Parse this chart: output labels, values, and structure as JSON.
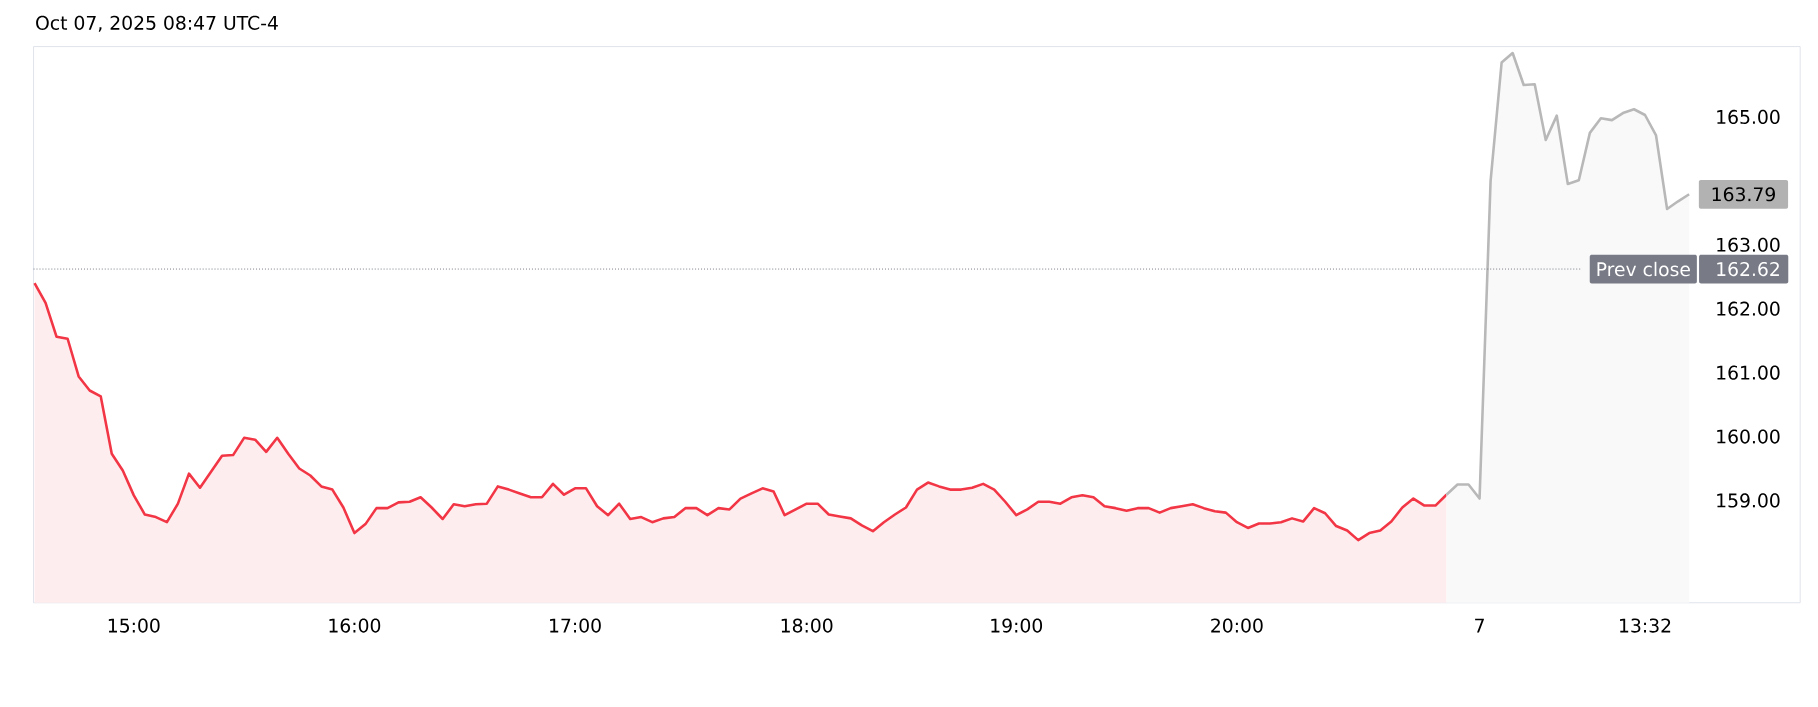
{
  "chart_data": {
    "type": "area",
    "annotations": [
      "Oct 07, 2025 08:47 UTC-4"
    ],
    "categories": [
      null,
      null,
      null,
      null,
      null,
      null,
      null,
      null,
      null,
      "15:00",
      null,
      null,
      null,
      null,
      null,
      null,
      null,
      null,
      null,
      null,
      null,
      null,
      null,
      null,
      null,
      null,
      null,
      null,
      null,
      "16:00",
      null,
      null,
      null,
      null,
      null,
      null,
      null,
      null,
      null,
      null,
      null,
      null,
      null,
      null,
      null,
      null,
      null,
      null,
      null,
      "17:00",
      null,
      null,
      null,
      null,
      null,
      null,
      null,
      null,
      null,
      null,
      null,
      null,
      null,
      null,
      null,
      null,
      null,
      null,
      null,
      null,
      "18:00",
      null,
      null,
      null,
      null,
      null,
      null,
      null,
      null,
      null,
      null,
      null,
      null,
      null,
      null,
      null,
      null,
      null,
      null,
      "19:00",
      null,
      null,
      null,
      null,
      null,
      null,
      null,
      null,
      null,
      null,
      null,
      null,
      null,
      null,
      null,
      null,
      null,
      null,
      null,
      "20:00",
      null,
      null,
      null,
      null,
      null,
      null,
      null,
      null,
      null,
      null,
      null,
      null,
      null,
      null,
      null,
      null,
      null,
      null,
      null,
      null,
      null,
      "7",
      null,
      null,
      null,
      null,
      null,
      null,
      null,
      null,
      null,
      null,
      null,
      null,
      null,
      null,
      "13:32",
      null,
      null,
      null,
      null
    ],
    "series": [
      {
        "color": "#f23645",
        "values": [
          162.4,
          162.09,
          161.56,
          161.53,
          160.94,
          160.72,
          160.63,
          159.73,
          159.47,
          159.08,
          158.78,
          158.74,
          158.66,
          158.95,
          159.42,
          159.2,
          159.45,
          159.7,
          159.71,
          159.98,
          159.95,
          159.76,
          159.98,
          159.73,
          159.5,
          159.39,
          159.22,
          159.17,
          158.89,
          158.49,
          158.63,
          158.88,
          158.88,
          158.97,
          158.98,
          159.05,
          158.89,
          158.71,
          158.94,
          158.91,
          158.94,
          158.95,
          159.22,
          159.17,
          159.11,
          159.05,
          159.05,
          159.26,
          159.09,
          159.19,
          159.19,
          158.91,
          158.77,
          158.95,
          158.71,
          158.74,
          158.66,
          158.72,
          158.74,
          158.88,
          158.88,
          158.77,
          158.88,
          158.86,
          159.03,
          159.11,
          159.19,
          159.14,
          158.77,
          158.86,
          158.95,
          158.95,
          158.78,
          158.75,
          158.72,
          158.61,
          158.52,
          158.66,
          158.78,
          158.89,
          159.17,
          159.28,
          159.22,
          159.17,
          159.17,
          159.2,
          159.26,
          159.17,
          158.98,
          158.77,
          158.86,
          158.98,
          158.98,
          158.95,
          159.05,
          159.08,
          159.05,
          158.91,
          158.88,
          158.84,
          158.88,
          158.88,
          158.81,
          158.88,
          158.91,
          158.94,
          158.88,
          158.83,
          158.81,
          158.66,
          158.57,
          158.64,
          158.64,
          158.66,
          158.72,
          158.67,
          158.88,
          158.8,
          158.6,
          158.53,
          158.38,
          158.49,
          158.53,
          158.67,
          158.89,
          159.03,
          158.92,
          158.92,
          159.09,
          null,
          null,
          null,
          null,
          null,
          null,
          null,
          null,
          null,
          null,
          null,
          null,
          null,
          null,
          null,
          null,
          null,
          null,
          null,
          null,
          null,
          null
        ]
      },
      {
        "color": "#b8b8b8",
        "values": [
          null,
          null,
          null,
          null,
          null,
          null,
          null,
          null,
          null,
          null,
          null,
          null,
          null,
          null,
          null,
          null,
          null,
          null,
          null,
          null,
          null,
          null,
          null,
          null,
          null,
          null,
          null,
          null,
          null,
          null,
          null,
          null,
          null,
          null,
          null,
          null,
          null,
          null,
          null,
          null,
          null,
          null,
          null,
          null,
          null,
          null,
          null,
          null,
          null,
          null,
          null,
          null,
          null,
          null,
          null,
          null,
          null,
          null,
          null,
          null,
          null,
          null,
          null,
          null,
          null,
          null,
          null,
          null,
          null,
          null,
          null,
          null,
          null,
          null,
          null,
          null,
          null,
          null,
          null,
          null,
          null,
          null,
          null,
          null,
          null,
          null,
          null,
          null,
          null,
          null,
          null,
          null,
          null,
          null,
          null,
          null,
          null,
          null,
          null,
          null,
          null,
          null,
          null,
          null,
          null,
          null,
          null,
          null,
          null,
          null,
          null,
          null,
          null,
          null,
          null,
          null,
          null,
          null,
          null,
          null,
          null,
          null,
          null,
          null,
          null,
          null,
          null,
          null,
          159.09,
          159.25,
          159.25,
          159.03,
          164.0,
          165.85,
          166.0,
          165.5,
          165.51,
          164.64,
          165.02,
          163.95,
          164.01,
          164.75,
          164.98,
          164.95,
          165.06,
          165.12,
          165.03,
          164.71,
          163.56,
          163.68,
          163.79
        ],
        "value_labels": [
          null,
          null,
          null,
          null,
          null,
          null,
          null,
          null,
          null,
          null,
          null,
          null,
          null,
          null,
          null,
          null,
          null,
          null,
          null,
          null,
          null,
          null,
          null,
          null,
          null,
          null,
          null,
          null,
          null,
          null,
          null,
          null,
          null,
          null,
          null,
          null,
          null,
          null,
          null,
          null,
          null,
          null,
          null,
          null,
          null,
          null,
          null,
          null,
          null,
          null,
          null,
          null,
          null,
          null,
          null,
          null,
          null,
          null,
          null,
          null,
          null,
          null,
          null,
          null,
          null,
          null,
          null,
          null,
          null,
          null,
          null,
          null,
          null,
          null,
          null,
          null,
          null,
          null,
          null,
          null,
          null,
          null,
          null,
          null,
          null,
          null,
          null,
          null,
          null,
          null,
          null,
          null,
          null,
          null,
          null,
          null,
          null,
          null,
          null,
          null,
          null,
          null,
          null,
          null,
          null,
          null,
          null,
          null,
          null,
          null,
          null,
          null,
          null,
          null,
          null,
          null,
          null,
          null,
          null,
          null,
          null,
          null,
          null,
          null,
          null,
          null,
          null,
          null,
          null,
          null,
          null,
          null,
          null,
          null,
          null,
          null,
          null,
          null,
          null,
          null,
          null,
          null,
          null,
          null,
          null,
          null,
          null,
          null,
          null,
          null,
          "163.79"
        ]
      }
    ],
    "ylim": [
      157.4,
      166.1
    ],
    "yticks": [
      {
        "value": 159,
        "label": "159.00"
      },
      {
        "value": 160,
        "label": "160.00"
      },
      {
        "value": 161,
        "label": "161.00"
      },
      {
        "value": 162,
        "label": "162.00"
      },
      {
        "value": 162.62,
        "label": "162.62"
      },
      {
        "value": 163,
        "label": "163.00"
      },
      {
        "value": 165,
        "label": "165.00"
      }
    ],
    "ref_lines": [
      {
        "axis": "y",
        "value": 162.62,
        "label": "Prev close",
        "color": "#787b86",
        "line_style": "dotted"
      }
    ]
  }
}
